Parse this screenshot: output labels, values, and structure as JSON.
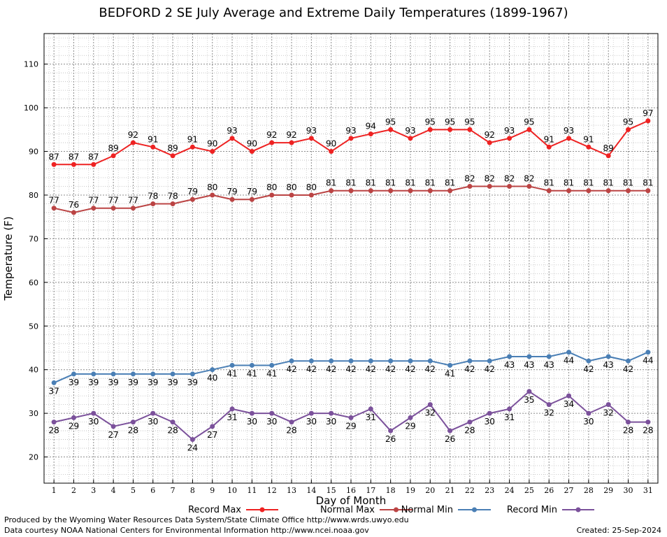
{
  "chart_data": {
    "type": "line",
    "title": "BEDFORD 2 SE July Average and Extreme Daily Temperatures (1899-1967)",
    "xlabel": "Day of Month",
    "ylabel": "Temperature (F)",
    "xlim": [
      0.5,
      31.5
    ],
    "ylim": [
      14,
      117
    ],
    "x": [
      1,
      2,
      3,
      4,
      5,
      6,
      7,
      8,
      9,
      10,
      11,
      12,
      13,
      14,
      15,
      16,
      17,
      18,
      19,
      20,
      21,
      22,
      23,
      24,
      25,
      26,
      27,
      28,
      29,
      30,
      31
    ],
    "y_ticks": [
      20,
      30,
      40,
      50,
      60,
      70,
      80,
      90,
      100,
      110
    ],
    "grid": true,
    "legend_position": "bottom",
    "series": [
      {
        "name": "Record Max",
        "color": "#ee2222",
        "label_pos": "above",
        "values": [
          87,
          87,
          87,
          89,
          92,
          91,
          89,
          91,
          90,
          93,
          90,
          92,
          92,
          93,
          90,
          93,
          94,
          95,
          93,
          95,
          95,
          95,
          92,
          93,
          95,
          91,
          93,
          91,
          89,
          95,
          97
        ]
      },
      {
        "name": "Normal Max",
        "color": "#bb4444",
        "label_pos": "above",
        "values": [
          77,
          76,
          77,
          77,
          77,
          78,
          78,
          79,
          80,
          79,
          79,
          80,
          80,
          80,
          81,
          81,
          81,
          81,
          81,
          81,
          81,
          82,
          82,
          82,
          82,
          81,
          81,
          81,
          81,
          81,
          81
        ]
      },
      {
        "name": "Normal Min",
        "color": "#4a7fb5",
        "label_pos": "below",
        "values": [
          37,
          39,
          39,
          39,
          39,
          39,
          39,
          39,
          40,
          41,
          41,
          41,
          42,
          42,
          42,
          42,
          42,
          42,
          42,
          42,
          41,
          42,
          42,
          43,
          43,
          43,
          44,
          42,
          43,
          42,
          44
        ]
      },
      {
        "name": "Record Min",
        "color": "#7b519b",
        "label_pos": "below",
        "values": [
          28,
          29,
          30,
          27,
          28,
          30,
          28,
          24,
          27,
          31,
          30,
          30,
          28,
          30,
          30,
          29,
          31,
          26,
          29,
          32,
          26,
          28,
          30,
          31,
          35,
          32,
          34,
          30,
          32,
          28,
          28
        ]
      }
    ]
  },
  "footer": {
    "producer": "Produced by the Wyoming Water Resources Data System/State Climate Office http://www.wrds.uwyo.edu",
    "courtesy": "Data courtesy NOAA National Centers for Environmental Information http://www.ncei.noaa.gov",
    "created": "Created:  25-Sep-2024"
  }
}
